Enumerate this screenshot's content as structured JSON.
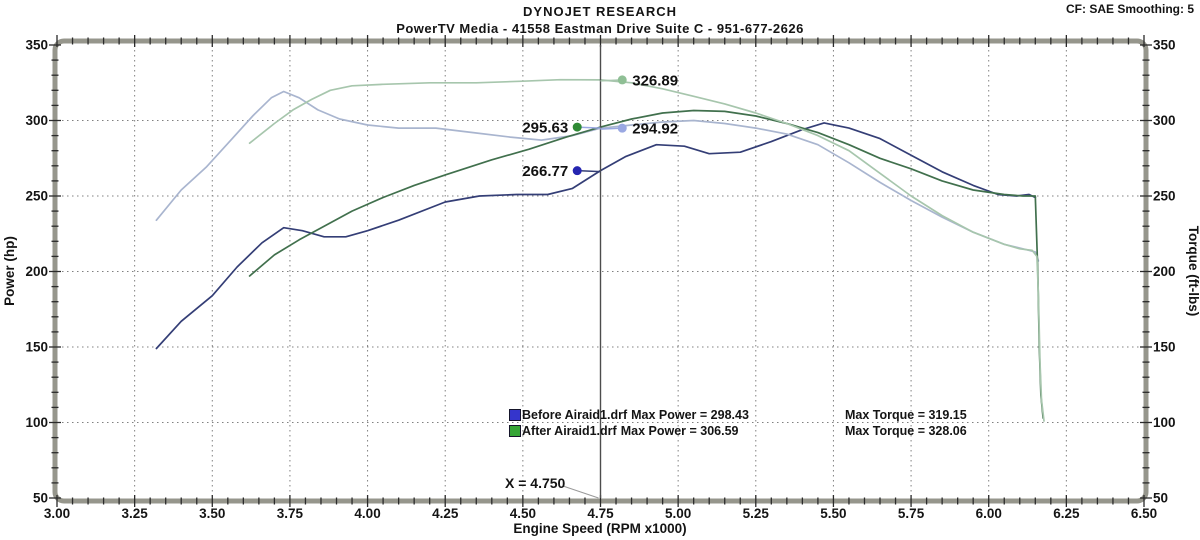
{
  "header": {
    "title": "DYNOJET RESEARCH",
    "subtitle": "PowerTV Media - 41558 Eastman Drive Suite C - 951-677-2626",
    "correction_info": "CF: SAE  Smoothing: 5"
  },
  "chart_data": {
    "type": "line",
    "title": "DYNOJET RESEARCH dyno run comparison, Before vs After Airaid intake",
    "xlabel": "Engine Speed (RPM x1000)",
    "ylabel_left": "Power (hp)",
    "ylabel_right": "Torque (ft-lbs)",
    "xlim": [
      3.0,
      6.5
    ],
    "ylim": [
      50,
      350
    ],
    "x_ticks": [
      "3.00",
      "3.25",
      "3.50",
      "3.75",
      "4.00",
      "4.25",
      "4.50",
      "4.75",
      "5.00",
      "5.25",
      "5.50",
      "5.75",
      "6.00",
      "6.25",
      "6.50"
    ],
    "y_ticks": [
      "350",
      "300",
      "250",
      "200",
      "150",
      "100",
      "50"
    ],
    "x_minor_step": 0.05,
    "y_minor_step": 10,
    "grid": "dotted gray at every major tick, legend centered bottom, cursor line at x=4.750",
    "cursor": {
      "x": 4.75,
      "label": "X = 4.750"
    },
    "series": [
      {
        "id": "before_power",
        "legend_name": "Before Airaid1.drf",
        "legend_power": "Max Power = 298.43",
        "legend_torque": "Max Torque = 319.15",
        "swatch_color": "#3535cc",
        "color": "#343e76",
        "points": [
          [
            3.32,
            149
          ],
          [
            3.4,
            167
          ],
          [
            3.5,
            184
          ],
          [
            3.58,
            203
          ],
          [
            3.66,
            219
          ],
          [
            3.73,
            229
          ],
          [
            3.79,
            227
          ],
          [
            3.86,
            223
          ],
          [
            3.93,
            223
          ],
          [
            4.0,
            227
          ],
          [
            4.1,
            234
          ],
          [
            4.25,
            246
          ],
          [
            4.36,
            250
          ],
          [
            4.48,
            251
          ],
          [
            4.58,
            251
          ],
          [
            4.66,
            255
          ],
          [
            4.75,
            266.8
          ],
          [
            4.83,
            276
          ],
          [
            4.93,
            284
          ],
          [
            5.02,
            283
          ],
          [
            5.1,
            278
          ],
          [
            5.2,
            279
          ],
          [
            5.3,
            286
          ],
          [
            5.4,
            294
          ],
          [
            5.47,
            298.4
          ],
          [
            5.55,
            295
          ],
          [
            5.65,
            288
          ],
          [
            5.75,
            277
          ],
          [
            5.85,
            266
          ],
          [
            5.95,
            257
          ],
          [
            6.03,
            251
          ],
          [
            6.09,
            250
          ],
          [
            6.13,
            251
          ],
          [
            6.15,
            249
          ]
        ]
      },
      {
        "id": "before_torque",
        "legend_name": "",
        "legend_power": "",
        "legend_torque": "",
        "swatch_color": "#3535cc",
        "color": "#a9b5cf",
        "points": [
          [
            3.32,
            234
          ],
          [
            3.4,
            254
          ],
          [
            3.48,
            269
          ],
          [
            3.56,
            287
          ],
          [
            3.63,
            303
          ],
          [
            3.69,
            315
          ],
          [
            3.73,
            319.2
          ],
          [
            3.78,
            315
          ],
          [
            3.84,
            307
          ],
          [
            3.91,
            301
          ],
          [
            4.0,
            297
          ],
          [
            4.1,
            295
          ],
          [
            4.22,
            295
          ],
          [
            4.34,
            292
          ],
          [
            4.46,
            289
          ],
          [
            4.56,
            287
          ],
          [
            4.66,
            290
          ],
          [
            4.75,
            294.9
          ],
          [
            4.85,
            297
          ],
          [
            4.95,
            299
          ],
          [
            5.05,
            300
          ],
          [
            5.15,
            298
          ],
          [
            5.25,
            295
          ],
          [
            5.35,
            291
          ],
          [
            5.45,
            284
          ],
          [
            5.55,
            272
          ],
          [
            5.65,
            259
          ],
          [
            5.75,
            247
          ],
          [
            5.85,
            236
          ],
          [
            5.95,
            226
          ],
          [
            6.05,
            218
          ],
          [
            6.11,
            215
          ],
          [
            6.15,
            213
          ],
          [
            6.16,
            207
          ]
        ]
      },
      {
        "id": "after_power",
        "legend_name": "After Airaid1.drf",
        "legend_power": "Max Power = 306.59",
        "legend_torque": "Max Torque = 328.06",
        "swatch_color": "#35a535",
        "color": "#41704d",
        "points": [
          [
            3.62,
            197
          ],
          [
            3.7,
            211
          ],
          [
            3.78,
            221
          ],
          [
            3.86,
            230
          ],
          [
            3.95,
            240
          ],
          [
            4.05,
            249
          ],
          [
            4.15,
            257
          ],
          [
            4.25,
            264
          ],
          [
            4.4,
            274
          ],
          [
            4.52,
            281
          ],
          [
            4.64,
            289
          ],
          [
            4.75,
            295.6
          ],
          [
            4.85,
            301
          ],
          [
            4.95,
            305
          ],
          [
            5.05,
            306.6
          ],
          [
            5.15,
            306
          ],
          [
            5.25,
            303
          ],
          [
            5.35,
            298
          ],
          [
            5.45,
            292
          ],
          [
            5.55,
            284
          ],
          [
            5.65,
            275
          ],
          [
            5.75,
            268
          ],
          [
            5.85,
            260
          ],
          [
            5.95,
            254
          ],
          [
            6.05,
            251
          ],
          [
            6.11,
            250
          ],
          [
            6.15,
            250
          ],
          [
            6.158,
            200
          ],
          [
            6.163,
            150
          ],
          [
            6.168,
            118
          ],
          [
            6.175,
            103
          ]
        ]
      },
      {
        "id": "after_torque",
        "legend_name": "",
        "legend_power": "",
        "legend_torque": "",
        "swatch_color": "#35a535",
        "color": "#a7c6ad",
        "points": [
          [
            3.62,
            285
          ],
          [
            3.7,
            298
          ],
          [
            3.76,
            307
          ],
          [
            3.82,
            314
          ],
          [
            3.88,
            320
          ],
          [
            3.95,
            323
          ],
          [
            4.05,
            324
          ],
          [
            4.2,
            325
          ],
          [
            4.35,
            325
          ],
          [
            4.5,
            326
          ],
          [
            4.62,
            327
          ],
          [
            4.75,
            326.9
          ],
          [
            4.85,
            325
          ],
          [
            4.95,
            321
          ],
          [
            5.05,
            316
          ],
          [
            5.15,
            311
          ],
          [
            5.25,
            305
          ],
          [
            5.35,
            298
          ],
          [
            5.45,
            290
          ],
          [
            5.55,
            280
          ],
          [
            5.65,
            265
          ],
          [
            5.75,
            250
          ],
          [
            5.85,
            237
          ],
          [
            5.95,
            226
          ],
          [
            6.05,
            218
          ],
          [
            6.1,
            215
          ],
          [
            6.14,
            214
          ],
          [
            6.155,
            210
          ],
          [
            6.16,
            185
          ],
          [
            6.165,
            140
          ],
          [
            6.17,
            115
          ],
          [
            6.178,
            101
          ]
        ]
      }
    ],
    "markers": [
      {
        "label": "326.89",
        "value": 326.89,
        "dot_rpm": 4.82,
        "side": "right",
        "dot_color": "#8fbf95",
        "line_color": "#a7c6ad"
      },
      {
        "label": "295.63",
        "value": 295.63,
        "dot_rpm": 4.675,
        "side": "left",
        "dot_color": "#2f8a35",
        "line_color": "#9aa8e2"
      },
      {
        "label": "294.92",
        "value": 294.92,
        "dot_rpm": 4.82,
        "side": "right",
        "dot_color": "#9aa8e2",
        "line_color": "#9aa8e2"
      },
      {
        "label": "266.77",
        "value": 266.77,
        "dot_rpm": 4.675,
        "side": "left",
        "dot_color": "#2525b0",
        "line_color": "#343e76"
      }
    ],
    "legend_position": "bottom-center"
  }
}
